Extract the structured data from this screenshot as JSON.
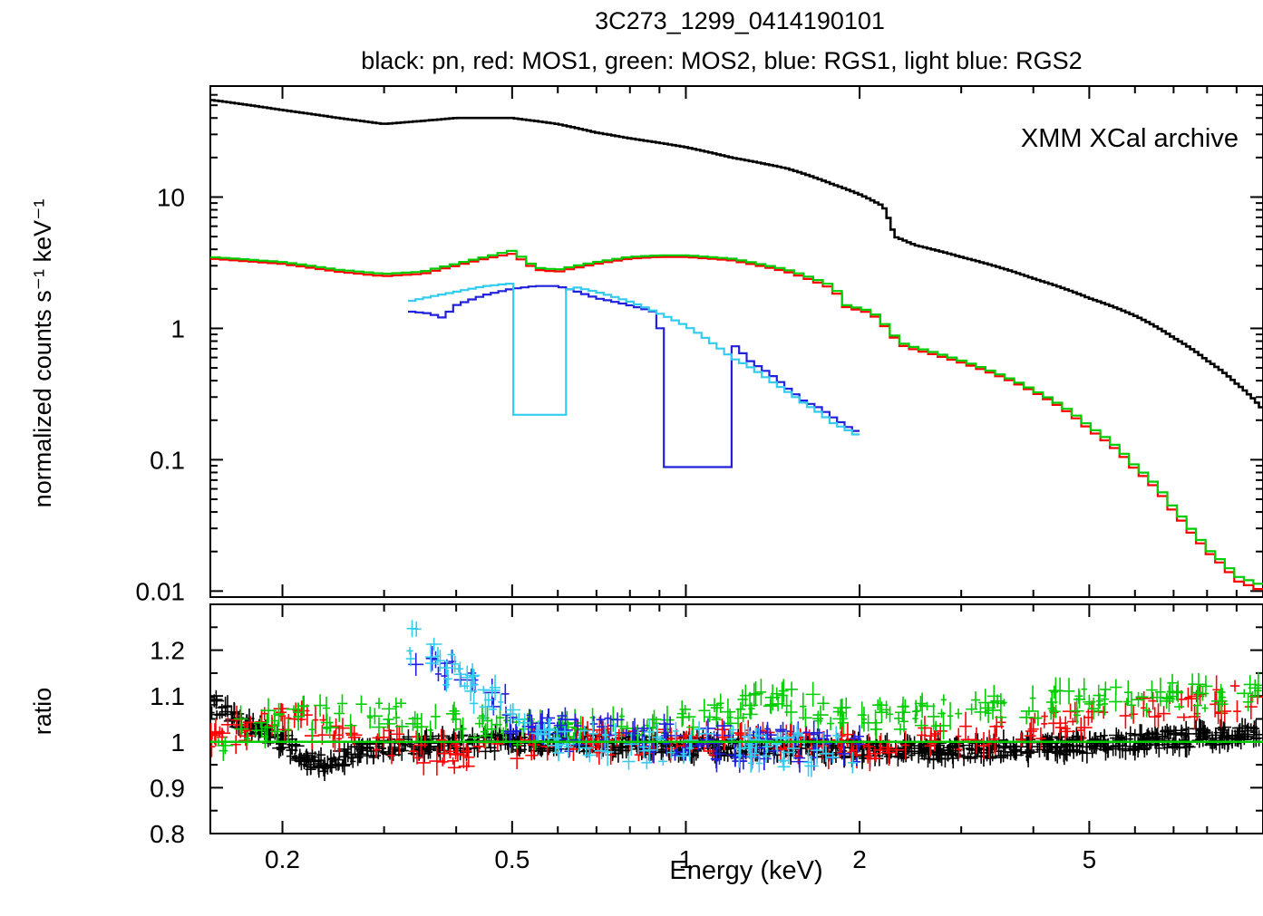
{
  "chart_data": [
    {
      "type": "line",
      "title": "3C273_1299_0414190101",
      "subtitle": "black: pn, red: MOS1, green: MOS2, blue: RGS1, light blue: RGS2",
      "annotation": "XMM XCal archive",
      "xlabel": "Energy (keV)",
      "ylabel": "normalized counts s⁻¹ keV⁻¹",
      "xscale": "log",
      "yscale": "log",
      "xlim": [
        0.15,
        10.0
      ],
      "ylim": [
        0.009,
        70
      ],
      "yticks": [
        0.01,
        0.1,
        1,
        10
      ],
      "ytick_labels": [
        "0.01",
        "0.1",
        "1",
        "10"
      ],
      "series": [
        {
          "name": "pn",
          "color": "#000000",
          "x": [
            0.15,
            0.2,
            0.25,
            0.3,
            0.35,
            0.4,
            0.45,
            0.5,
            0.6,
            0.7,
            0.8,
            1.0,
            1.2,
            1.5,
            1.8,
            2.0,
            2.2,
            2.3,
            2.5,
            3.0,
            4.0,
            5.0,
            6.0,
            7.0,
            8.0,
            9.0,
            10.0
          ],
          "y": [
            55,
            46,
            40,
            36,
            38,
            40,
            40,
            40,
            36,
            31,
            28,
            24,
            20,
            16.5,
            12.5,
            10.5,
            8.5,
            5.0,
            4.3,
            3.5,
            2.4,
            1.7,
            1.25,
            0.85,
            0.57,
            0.38,
            0.24
          ]
        },
        {
          "name": "MOS1",
          "color": "#ff0000",
          "x": [
            0.15,
            0.2,
            0.25,
            0.3,
            0.35,
            0.4,
            0.45,
            0.5,
            0.55,
            0.6,
            0.7,
            0.8,
            0.9,
            1.0,
            1.2,
            1.5,
            1.8,
            1.9,
            2.1,
            2.3,
            2.4,
            3.0,
            4.0,
            5.0,
            6.0,
            7.0,
            7.5,
            8.0,
            9.0,
            10.0
          ],
          "y": [
            3.4,
            3.1,
            2.7,
            2.5,
            2.6,
            3.0,
            3.4,
            3.7,
            2.8,
            2.7,
            3.1,
            3.4,
            3.5,
            3.5,
            3.3,
            2.7,
            2.0,
            1.45,
            1.3,
            0.85,
            0.72,
            0.55,
            0.33,
            0.17,
            0.085,
            0.04,
            0.028,
            0.02,
            0.012,
            0.01
          ]
        },
        {
          "name": "MOS2",
          "color": "#00cc00",
          "x": [
            0.15,
            0.2,
            0.25,
            0.3,
            0.35,
            0.4,
            0.45,
            0.5,
            0.55,
            0.6,
            0.7,
            0.8,
            0.9,
            1.0,
            1.2,
            1.5,
            1.8,
            1.9,
            2.1,
            2.3,
            2.4,
            3.0,
            4.0,
            5.0,
            6.0,
            7.0,
            7.5,
            8.0,
            9.0,
            10.0
          ],
          "y": [
            3.5,
            3.2,
            2.8,
            2.6,
            2.7,
            3.1,
            3.5,
            3.9,
            2.9,
            2.8,
            3.2,
            3.5,
            3.6,
            3.6,
            3.4,
            2.8,
            2.1,
            1.5,
            1.35,
            0.88,
            0.75,
            0.57,
            0.34,
            0.18,
            0.09,
            0.043,
            0.03,
            0.021,
            0.013,
            0.011
          ]
        },
        {
          "name": "RGS1",
          "color": "#2020dd",
          "x": [
            0.33,
            0.36,
            0.38,
            0.4,
            0.45,
            0.5,
            0.55,
            0.6,
            0.65,
            0.7,
            0.75,
            0.8,
            0.85,
            0.9,
            0.91,
            1.2,
            1.21,
            1.3,
            1.4,
            1.5,
            1.6,
            1.7,
            1.8,
            1.9,
            2.0
          ],
          "y": [
            1.35,
            1.3,
            1.2,
            1.5,
            1.8,
            2.0,
            2.1,
            2.1,
            1.9,
            1.7,
            1.6,
            1.5,
            1.4,
            1.3,
            0.088,
            0.088,
            0.75,
            0.55,
            0.45,
            0.35,
            0.28,
            0.25,
            0.21,
            0.18,
            0.16
          ]
        },
        {
          "name": "RGS2",
          "color": "#33ccee",
          "x": [
            0.33,
            0.4,
            0.45,
            0.5,
            0.51,
            0.62,
            0.63,
            0.7,
            0.8,
            0.9,
            1.0,
            1.1,
            1.2,
            1.3,
            1.4,
            1.5,
            1.6,
            1.7,
            1.8,
            1.9,
            2.0
          ],
          "y": [
            1.6,
            1.9,
            2.1,
            2.2,
            0.22,
            0.22,
            2.1,
            1.9,
            1.6,
            1.3,
            1.05,
            0.8,
            0.6,
            0.5,
            0.4,
            0.33,
            0.27,
            0.23,
            0.19,
            0.17,
            0.15
          ]
        }
      ]
    },
    {
      "type": "scatter",
      "ylabel": "ratio",
      "xlabel": "Energy (keV)",
      "xscale": "log",
      "xlim": [
        0.15,
        10.0
      ],
      "ylim": [
        0.8,
        1.3
      ],
      "yticks": [
        0.8,
        0.9,
        1,
        1.1,
        1.2
      ],
      "ytick_labels": [
        "0.8",
        "0.9",
        "1",
        "1.1",
        "1.2"
      ],
      "xticks": [
        0.2,
        0.5,
        1,
        2,
        5
      ],
      "xtick_labels": [
        "0.2",
        "0.5",
        "1",
        "2",
        "5"
      ],
      "reference_line": {
        "y": 1.0,
        "color": "#00cc00"
      },
      "series": [
        {
          "name": "pn",
          "color": "#000000",
          "x_range": [
            0.15,
            10.0
          ],
          "trend": [
            [
              0.15,
              1.08
            ],
            [
              0.18,
              1.03
            ],
            [
              0.2,
              1.0
            ],
            [
              0.23,
              0.95
            ],
            [
              0.26,
              0.97
            ],
            [
              0.3,
              0.99
            ],
            [
              0.5,
              1.0
            ],
            [
              1.0,
              0.99
            ],
            [
              3.0,
              0.98
            ],
            [
              6.0,
              1.0
            ],
            [
              10.0,
              1.02
            ]
          ],
          "scatter": 0.02
        },
        {
          "name": "MOS1",
          "color": "#ff0000",
          "x_range": [
            0.15,
            10.0
          ],
          "trend": [
            [
              0.15,
              1.0
            ],
            [
              0.2,
              1.05
            ],
            [
              0.3,
              1.0
            ],
            [
              0.4,
              0.97
            ],
            [
              0.6,
              1.0
            ],
            [
              1.0,
              1.0
            ],
            [
              2.0,
              0.99
            ],
            [
              4.0,
              1.03
            ],
            [
              7.0,
              1.08
            ],
            [
              10.0,
              1.1
            ]
          ],
          "scatter": 0.03
        },
        {
          "name": "MOS2",
          "color": "#00cc00",
          "x_range": [
            0.15,
            10.0
          ],
          "trend": [
            [
              0.15,
              1.0
            ],
            [
              0.2,
              1.05
            ],
            [
              0.3,
              1.06
            ],
            [
              0.5,
              1.02
            ],
            [
              1.0,
              1.05
            ],
            [
              1.5,
              1.09
            ],
            [
              2.0,
              1.05
            ],
            [
              4.0,
              1.08
            ],
            [
              7.0,
              1.1
            ],
            [
              10.0,
              1.11
            ]
          ],
          "scatter": 0.03
        },
        {
          "name": "RGS1",
          "color": "#2020dd",
          "x_range": [
            0.33,
            2.0
          ],
          "trend": [
            [
              0.33,
              1.2
            ],
            [
              0.4,
              1.15
            ],
            [
              0.45,
              1.13
            ],
            [
              0.5,
              1.05
            ],
            [
              0.6,
              1.02
            ],
            [
              1.0,
              1.0
            ],
            [
              2.0,
              0.99
            ]
          ],
          "scatter": 0.04
        },
        {
          "name": "RGS2",
          "color": "#33ccee",
          "x_range": [
            0.33,
            2.0
          ],
          "trend": [
            [
              0.33,
              1.22
            ],
            [
              0.4,
              1.15
            ],
            [
              0.45,
              1.1
            ],
            [
              0.5,
              1.05
            ],
            [
              0.6,
              1.0
            ],
            [
              1.0,
              0.99
            ],
            [
              2.0,
              0.98
            ]
          ],
          "scatter": 0.04
        }
      ]
    }
  ]
}
